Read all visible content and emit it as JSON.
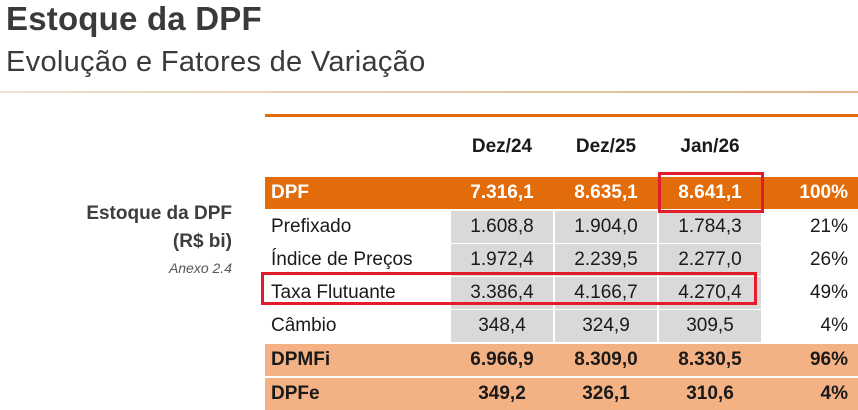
{
  "header": {
    "title": "Estoque da DPF",
    "subtitle": "Evolução e Fatores de Variação"
  },
  "side_label": {
    "line1": "Estoque da DPF",
    "line2": "(R$ bi)",
    "annex": "Anexo 2.4"
  },
  "table": {
    "columns": [
      "",
      "Dez/24",
      "Dez/25",
      "Jan/26",
      ""
    ],
    "rows": [
      {
        "label": "DPF",
        "v1": "7.316,1",
        "v2": "8.635,1",
        "v3": "8.641,1",
        "pct": "100%"
      },
      {
        "label": "Prefixado",
        "v1": "1.608,8",
        "v2": "1.904,0",
        "v3": "1.784,3",
        "pct": "21%"
      },
      {
        "label": "Índice de Preços",
        "v1": "1.972,4",
        "v2": "2.239,5",
        "v3": "2.277,0",
        "pct": "26%"
      },
      {
        "label": "Taxa Flutuante",
        "v1": "3.386,4",
        "v2": "4.166,7",
        "v3": "4.270,4",
        "pct": "49%"
      },
      {
        "label": "Câmbio",
        "v1": "348,4",
        "v2": "324,9",
        "v3": "309,5",
        "pct": "4%"
      },
      {
        "label": "DPMFi",
        "v1": "6.966,9",
        "v2": "8.309,0",
        "v3": "8.330,5",
        "pct": "96%"
      },
      {
        "label": "DPFe",
        "v1": "349,2",
        "v2": "326,1",
        "v3": "310,6",
        "pct": "4%"
      }
    ]
  },
  "colors": {
    "accent_orange": "#e36c0a",
    "light_orange": "#f4b183",
    "gray_cell": "#d9d9d9",
    "highlight_red": "#e21c2a"
  }
}
